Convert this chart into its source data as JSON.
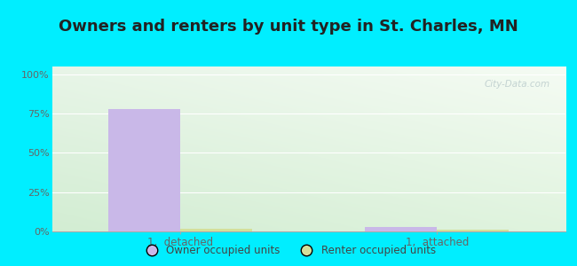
{
  "title": "Owners and renters by unit type in St. Charles, MN",
  "categories": [
    "1,  detached",
    "1,  attached"
  ],
  "owner_values": [
    78,
    3
  ],
  "renter_values": [
    1.5,
    1.2
  ],
  "owner_color": "#c9b8e8",
  "renter_color": "#d4df9a",
  "outer_background": "#00eeff",
  "yticks": [
    0,
    25,
    50,
    75,
    100
  ],
  "ylim": [
    0,
    105
  ],
  "bar_width": 0.28,
  "title_fontsize": 13,
  "legend_labels": [
    "Owner occupied units",
    "Renter occupied units"
  ],
  "watermark": "City-Data.com"
}
